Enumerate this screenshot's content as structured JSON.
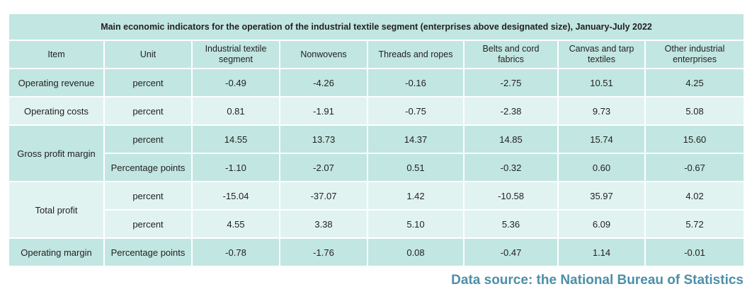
{
  "chart_data": {
    "type": "table",
    "title": "Main economic indicators for the operation of the industrial textile segment (enterprises above designated size), January-July 2022",
    "columns": [
      "Item",
      "Unit",
      "Industrial textile segment",
      "Nonwovens",
      "Threads and ropes",
      "Belts and cord fabrics",
      "Canvas and tarp textiles",
      "Other industrial enterprises"
    ],
    "rows": [
      {
        "item": "Operating revenue",
        "unit": "percent",
        "values": [
          "-0.49",
          "-4.26",
          "-0.16",
          "-2.75",
          "10.51",
          "4.25"
        ]
      },
      {
        "item": "Operating costs",
        "unit": "percent",
        "values": [
          "0.81",
          "-1.91",
          "-0.75",
          "-2.38",
          "9.73",
          "5.08"
        ]
      },
      {
        "item": "Gross profit margin",
        "unit": "percent",
        "values": [
          "14.55",
          "13.73",
          "14.37",
          "14.85",
          "15.74",
          "15.60"
        ]
      },
      {
        "item": "",
        "unit": "Percentage points",
        "values": [
          "-1.10",
          "-2.07",
          "0.51",
          "-0.32",
          "0.60",
          "-0.67"
        ]
      },
      {
        "item": "Total profit",
        "unit": "percent",
        "values": [
          "-15.04",
          "-37.07",
          "1.42",
          "-10.58",
          "35.97",
          "4.02"
        ]
      },
      {
        "item": "",
        "unit": "percent",
        "values": [
          "4.55",
          "3.38",
          "5.10",
          "5.36",
          "6.09",
          "5.72"
        ]
      },
      {
        "item": "Operating margin",
        "unit": "Percentage points",
        "values": [
          "-0.78",
          "-1.76",
          "0.08",
          "-0.47",
          "1.14",
          "-0.01"
        ]
      }
    ],
    "source": "Data source: the National Bureau of Statistics"
  },
  "colors": {
    "header_fill": "#c2e6e1",
    "row_fill_dark": "#c2e6e1",
    "row_fill_light": "#e1f3f0",
    "source_text": "#4d8fa6"
  }
}
